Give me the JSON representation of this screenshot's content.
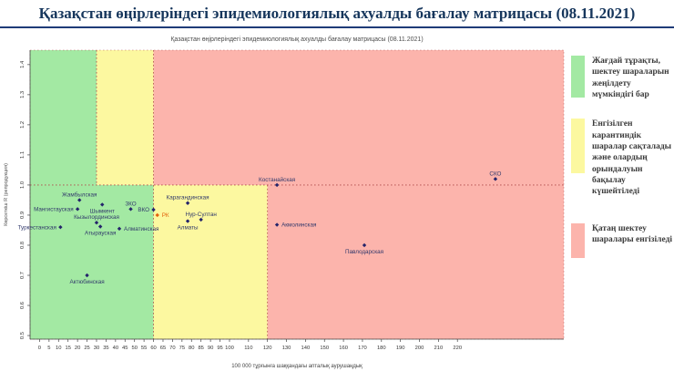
{
  "header": {
    "title": "Қазақстан өңірлеріндегі эпидемиологиялық ахуалды бағалау матрицасы  (08.11.2021)"
  },
  "colors": {
    "green": "#a3e9a3",
    "yellow": "#fcf8a0",
    "red": "#fcb4ac",
    "title": "#16365c",
    "point": "#24246a",
    "point_label": "#31396b",
    "rk": "#e2620c",
    "dash": "#b04a4a",
    "axis": "#444444"
  },
  "chart_data": {
    "type": "scatter",
    "title": "Қазақстан өңірлеріндегі эпидемиологиялық ахуалды бағалау матрицасы  (08.11.2021)",
    "xlabel": "100 000 тұрғынға шаққандағы апталық аурушаңдық",
    "ylabel": "Көрсеткіш R (репродукция)",
    "xlim": [
      -5,
      276
    ],
    "ylim": [
      0.488,
      1.448
    ],
    "x_ticks": [
      0,
      5,
      10,
      15,
      20,
      25,
      30,
      35,
      40,
      45,
      50,
      55,
      60,
      65,
      70,
      75,
      80,
      85,
      90,
      95,
      100,
      110,
      120,
      130,
      140,
      150,
      160,
      170,
      180,
      190,
      200,
      210,
      220
    ],
    "y_ticks": [
      0.5,
      0.6,
      0.7,
      0.8,
      0.9,
      1.0,
      1.1,
      1.2,
      1.3,
      1.4
    ],
    "r_threshold": 1.0,
    "zone_thresholds": {
      "above_r1": [
        30,
        60
      ],
      "below_r1": [
        60,
        120
      ]
    },
    "zones": [
      {
        "x0": -5,
        "x1": 30,
        "r0": 1.0,
        "r1": 1.448,
        "color": "green"
      },
      {
        "x0": 30,
        "x1": 60,
        "r0": 1.0,
        "r1": 1.448,
        "color": "yellow"
      },
      {
        "x0": 60,
        "x1": 276,
        "r0": 1.0,
        "r1": 1.448,
        "color": "red"
      },
      {
        "x0": -5,
        "x1": 60,
        "r0": 0.488,
        "r1": 1.0,
        "color": "green"
      },
      {
        "x0": 60,
        "x1": 120,
        "r0": 0.488,
        "r1": 1.0,
        "color": "yellow"
      },
      {
        "x0": 120,
        "x1": 276,
        "r0": 0.488,
        "r1": 1.0,
        "color": "red"
      }
    ],
    "boundaries": [
      {
        "orient": "h",
        "r": 1.0,
        "x0": -5,
        "x1": 276
      },
      {
        "orient": "v",
        "x": 30,
        "r0": 1.0,
        "r1": 1.448
      },
      {
        "orient": "v",
        "x": 60,
        "r0": 0.488,
        "r1": 1.448
      },
      {
        "orient": "v",
        "x": 120,
        "r0": 0.488,
        "r1": 1.0
      }
    ],
    "points": [
      {
        "name": "Туркестанская",
        "x": 11,
        "r": 0.86,
        "label_pos": "left"
      },
      {
        "name": "Мангистауская",
        "x": 20,
        "r": 0.92,
        "label_pos": "left"
      },
      {
        "name": "Жамбылская",
        "x": 21,
        "r": 0.95,
        "label_pos": "above"
      },
      {
        "name": "Актюбинская",
        "x": 25,
        "r": 0.7,
        "label_pos": "below"
      },
      {
        "name": "Кызылординская",
        "x": 30,
        "r": 0.875,
        "label_pos": "above"
      },
      {
        "name": "Атырауская",
        "x": 32,
        "r": 0.862,
        "label_pos": "below"
      },
      {
        "name": "Шымкент",
        "x": 33,
        "r": 0.935,
        "label_pos": "below"
      },
      {
        "name": "Алматинская",
        "x": 42,
        "r": 0.855,
        "label_pos": "right"
      },
      {
        "name": "ЗКО",
        "x": 48,
        "r": 0.92,
        "label_pos": "above"
      },
      {
        "name": "ВКО",
        "x": 60,
        "r": 0.918,
        "label_pos": "left"
      },
      {
        "name": "РК",
        "x": 62,
        "r": 0.9,
        "label_pos": "right",
        "color": "rk"
      },
      {
        "name": "Карагандинская",
        "x": 78,
        "r": 0.94,
        "label_pos": "above"
      },
      {
        "name": "Алматы",
        "x": 78,
        "r": 0.88,
        "label_pos": "below"
      },
      {
        "name": "Нур-Султан",
        "x": 85,
        "r": 0.885,
        "label_pos": "above"
      },
      {
        "name": "Костанайская",
        "x": 125,
        "r": 1.0,
        "label_pos": "above"
      },
      {
        "name": "Акмолинская",
        "x": 125,
        "r": 0.868,
        "label_pos": "right"
      },
      {
        "name": "Павлодарская",
        "x": 171,
        "r": 0.8,
        "label_pos": "below"
      },
      {
        "name": "СКО",
        "x": 240,
        "r": 1.02,
        "label_pos": "above"
      }
    ]
  },
  "legend": {
    "items": [
      {
        "color": "green",
        "text": "Жағдай тұрақты, шектеу шараларын жеңілдету мүмкіндігі бар"
      },
      {
        "color": "yellow",
        "text": "Енгізілген карантиндік шаралар сақталады және олардың орындалуын бақылау күшейтіледі"
      },
      {
        "color": "red",
        "text": "Қатаң шектеу шаралары енгізіледі"
      }
    ]
  }
}
